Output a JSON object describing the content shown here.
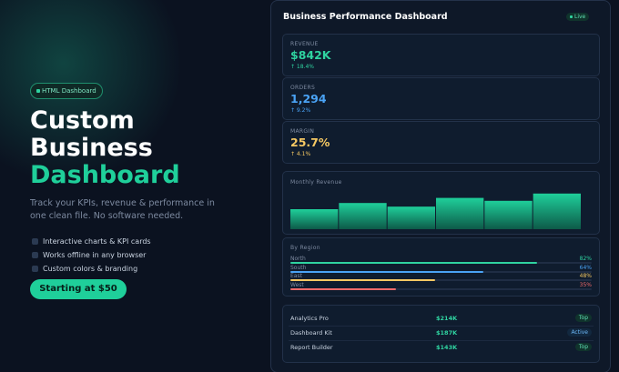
{
  "hero": {
    "badge": "HTML Dashboard",
    "title_lines": [
      "Custom",
      "Business"
    ],
    "title_accent": "Dashboard",
    "description": "Track your KPIs, revenue & performance in one clean file. No software needed.",
    "features": [
      "Interactive charts & KPI cards",
      "Works offline in any browser",
      "Custom colors & branding"
    ],
    "button": "Starting at $50"
  },
  "dashboard": {
    "title": "Business Performance Dashboard",
    "status": "Live",
    "kpis": [
      {
        "label": "REVENUE",
        "value": "$842K",
        "change": "↑ 18.4%",
        "color": "#2fd3a0"
      },
      {
        "label": "ORDERS",
        "value": "1,294",
        "change": "↑ 9.2%",
        "color": "#4aa3f5"
      },
      {
        "label": "MARGIN",
        "value": "25.7%",
        "change": "↑ 4.1%",
        "color": "#f5c863"
      }
    ],
    "monthly_revenue": {
      "title": "Monthly Revenue",
      "values": [
        55,
        72,
        62,
        86,
        78,
        98
      ],
      "ylim": [
        0,
        100
      ],
      "color": "#1fcf9a"
    },
    "regions": {
      "title": "By Region",
      "xlim": [
        0,
        100
      ],
      "rows": [
        {
          "name": "North",
          "value": 82,
          "label": "82%",
          "color": "#2fd3a0"
        },
        {
          "name": "South",
          "value": 64,
          "label": "64%",
          "color": "#4aa3f5"
        },
        {
          "name": "East",
          "value": 48,
          "label": "48%",
          "color": "#f5c863"
        },
        {
          "name": "West",
          "value": 35,
          "label": "35%",
          "color": "#f06b6b"
        }
      ]
    },
    "products": [
      {
        "name": "Analytics Pro",
        "amount": "$214K",
        "tag": "Top"
      },
      {
        "name": "Dashboard Kit",
        "amount": "$187K",
        "tag": "Active"
      },
      {
        "name": "Report Builder",
        "amount": "$143K",
        "tag": "Top"
      }
    ]
  }
}
